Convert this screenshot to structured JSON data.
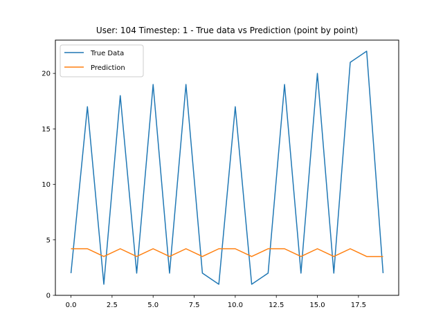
{
  "chart_data": {
    "type": "line",
    "title": "User: 104 Timestep: 1 - True data vs Prediction (point by point)",
    "xlabel": "",
    "ylabel": "",
    "x": [
      0,
      1,
      2,
      3,
      4,
      5,
      6,
      7,
      8,
      9,
      10,
      11,
      12,
      13,
      14,
      15,
      16,
      17,
      18,
      19
    ],
    "xlim": [
      -0.95,
      19.95
    ],
    "ylim": [
      0,
      23
    ],
    "xticks": [
      0,
      2.5,
      5,
      7.5,
      10,
      12.5,
      15,
      17.5
    ],
    "xtick_labels": [
      "0.0",
      "2.5",
      "5.0",
      "7.5",
      "10.0",
      "12.5",
      "15.0",
      "17.5"
    ],
    "yticks": [
      0,
      5,
      10,
      15,
      20
    ],
    "ytick_labels": [
      "0",
      "5",
      "10",
      "15",
      "20"
    ],
    "grid": false,
    "legend_position": "top-left",
    "series": [
      {
        "name": "True Data",
        "color": "#1f77b4",
        "values": [
          2,
          17,
          1,
          18,
          2,
          19,
          2,
          19,
          2,
          1,
          17,
          1,
          2,
          19,
          2,
          20,
          2,
          21,
          22,
          2
        ]
      },
      {
        "name": "Prediction",
        "color": "#ff7f0e",
        "values": [
          4.2,
          4.2,
          3.5,
          4.2,
          3.5,
          4.2,
          3.5,
          4.2,
          3.5,
          4.2,
          4.2,
          3.5,
          4.2,
          4.2,
          3.5,
          4.2,
          3.5,
          4.2,
          3.5,
          3.5
        ]
      }
    ]
  }
}
